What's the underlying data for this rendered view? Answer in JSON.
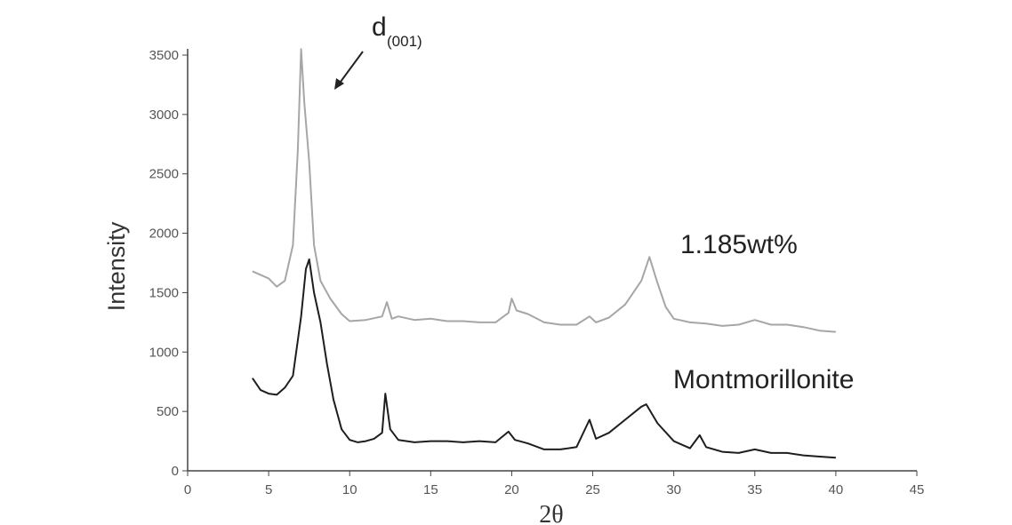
{
  "chart_data": {
    "type": "line",
    "xlabel": "2θ",
    "ylabel": "Intensity",
    "annotations": [
      {
        "text": "d",
        "subscript": "(001)"
      }
    ],
    "xlim": [
      0,
      45
    ],
    "xticks": [
      0,
      5,
      10,
      15,
      20,
      25,
      30,
      35,
      40,
      45
    ],
    "ylim": [
      0,
      3500
    ],
    "yticks": [
      0,
      500,
      1000,
      1500,
      2000,
      2500,
      3000,
      3500
    ],
    "grid": false,
    "series": [
      {
        "name": "1.185wt%",
        "color": "#a6a6a6",
        "x": [
          4,
          5,
          5.5,
          6,
          6.5,
          6.8,
          7.0,
          7.2,
          7.5,
          7.8,
          8.2,
          8.8,
          9.5,
          10,
          11,
          12,
          12.3,
          12.6,
          13,
          14,
          15,
          16,
          17,
          18,
          19,
          19.8,
          20,
          20.3,
          21,
          22,
          23,
          24,
          24.8,
          25.2,
          26,
          27,
          28,
          28.5,
          29,
          29.5,
          30,
          31,
          32,
          33,
          34,
          35,
          36,
          37,
          38,
          39,
          40
        ],
        "values": [
          1680,
          1620,
          1550,
          1600,
          1900,
          2700,
          3550,
          3100,
          2600,
          1900,
          1600,
          1450,
          1320,
          1260,
          1270,
          1300,
          1420,
          1280,
          1300,
          1270,
          1280,
          1260,
          1260,
          1250,
          1250,
          1330,
          1450,
          1350,
          1320,
          1250,
          1230,
          1230,
          1300,
          1250,
          1290,
          1400,
          1600,
          1800,
          1580,
          1380,
          1280,
          1250,
          1240,
          1220,
          1230,
          1270,
          1230,
          1230,
          1210,
          1180,
          1170
        ]
      },
      {
        "name": "Montmorillonite",
        "color": "#1e1e1e",
        "x": [
          4,
          4.5,
          5,
          5.5,
          6,
          6.5,
          7,
          7.3,
          7.5,
          7.8,
          8.2,
          8.6,
          9,
          9.5,
          10,
          10.5,
          11,
          11.5,
          12,
          12.2,
          12.5,
          13,
          14,
          15,
          16,
          17,
          18,
          19,
          19.8,
          20.2,
          21,
          22,
          23,
          24,
          24.8,
          25.2,
          26,
          27,
          28,
          28.3,
          29,
          30,
          31,
          31.6,
          32,
          33,
          34,
          35,
          36,
          37,
          38,
          39,
          40
        ],
        "values": [
          780,
          680,
          650,
          640,
          700,
          800,
          1300,
          1700,
          1780,
          1500,
          1250,
          900,
          600,
          350,
          260,
          240,
          250,
          270,
          320,
          650,
          350,
          260,
          240,
          250,
          250,
          240,
          250,
          240,
          330,
          260,
          230,
          180,
          180,
          200,
          430,
          270,
          320,
          430,
          540,
          560,
          400,
          250,
          190,
          300,
          200,
          160,
          150,
          180,
          150,
          150,
          130,
          120,
          110
        ]
      }
    ]
  }
}
